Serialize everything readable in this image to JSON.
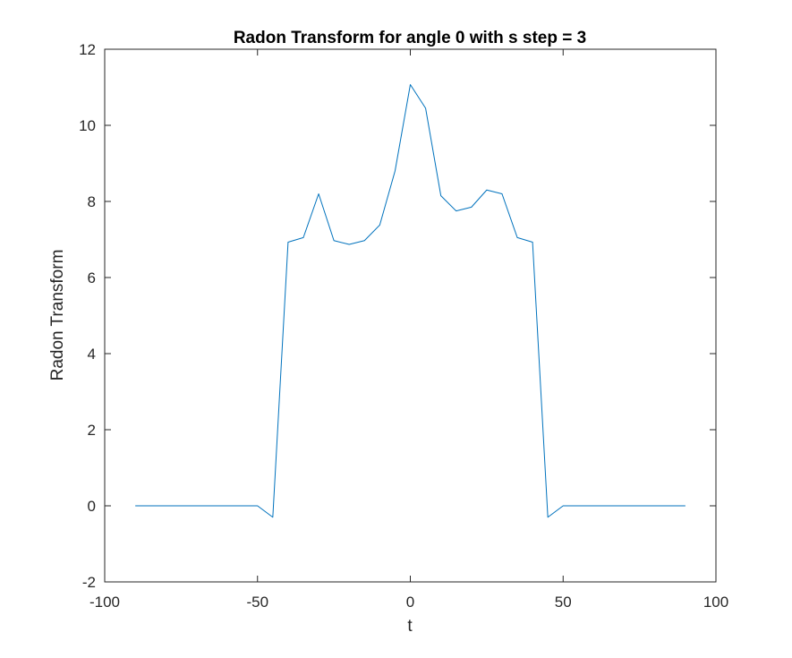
{
  "chart_data": {
    "type": "line",
    "title": "Radon Transform for angle 0 with s step = 3",
    "xlabel": "t",
    "ylabel": "Radon Transform",
    "xlim": [
      -100,
      100
    ],
    "ylim": [
      -2,
      12
    ],
    "xticks": [
      -100,
      -50,
      0,
      50,
      100
    ],
    "yticks": [
      -2,
      0,
      2,
      4,
      6,
      8,
      10,
      12
    ],
    "xtick_labels": [
      "-100",
      "-50",
      "0",
      "50",
      "100"
    ],
    "ytick_labels": [
      "-2",
      "0",
      "2",
      "4",
      "6",
      "8",
      "10",
      "12"
    ],
    "grid": false,
    "line_color": "#0072BD",
    "axis_color": "#262626",
    "series": [
      {
        "x": [
          -90,
          -85,
          -80,
          -75,
          -70,
          -65,
          -60,
          -55,
          -50,
          -45,
          -40,
          -35,
          -30,
          -25,
          -20,
          -15,
          -10,
          -5,
          0,
          5,
          10,
          15,
          20,
          25,
          30,
          35,
          40,
          45,
          50,
          55,
          60,
          65,
          70,
          75,
          80,
          85,
          90
        ],
        "y": [
          0,
          0,
          0,
          0,
          0,
          0,
          0,
          0,
          0,
          -0.3,
          6.93,
          7.05,
          8.2,
          6.97,
          6.87,
          6.97,
          7.38,
          8.8,
          11.07,
          10.45,
          8.15,
          7.75,
          7.85,
          8.3,
          8.2,
          7.05,
          6.93,
          -0.3,
          0,
          0,
          0,
          0,
          0,
          0,
          0,
          0,
          0
        ]
      }
    ]
  }
}
